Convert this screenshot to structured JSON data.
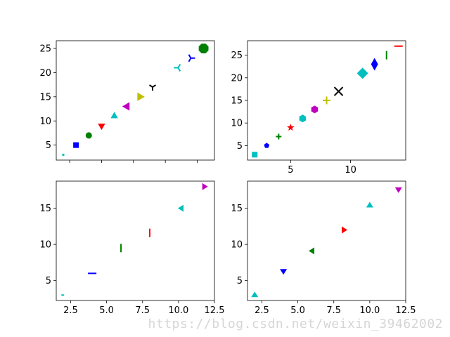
{
  "watermark": "https://blog.csdn.net/weixin_39462002",
  "chart_data": [
    {
      "type": "scatter",
      "xlim": [
        1.45,
        13.85
      ],
      "ylim": [
        1.9,
        26.6
      ],
      "xticks": [
        2.5,
        5.0,
        7.5,
        10.0,
        12.5
      ],
      "xticklabels": [
        "",
        "",
        "",
        "",
        ""
      ],
      "yticks": [
        5,
        10,
        15,
        20,
        25
      ],
      "yticklabels": [
        "5",
        "10",
        "15",
        "20",
        "25"
      ],
      "points": [
        {
          "x": 2,
          "y": 3,
          "marker": "point-small",
          "color": "#00BFBF"
        },
        {
          "x": 3,
          "y": 5,
          "marker": "square",
          "color": "#0000FF"
        },
        {
          "x": 4,
          "y": 7,
          "marker": "circle",
          "color": "#008000"
        },
        {
          "x": 5,
          "y": 9,
          "marker": "triangle-down",
          "color": "#FF0000"
        },
        {
          "x": 6,
          "y": 11,
          "marker": "triangle-up",
          "color": "#00BFBF"
        },
        {
          "x": 7,
          "y": 13,
          "marker": "triangle-left",
          "color": "#BF00BF"
        },
        {
          "x": 8,
          "y": 15,
          "marker": "triangle-right",
          "color": "#BFBF00"
        },
        {
          "x": 9,
          "y": 17,
          "marker": "tri-down",
          "color": "#000000"
        },
        {
          "x": 11,
          "y": 21,
          "marker": "tri-left",
          "color": "#00BFBF"
        },
        {
          "x": 12,
          "y": 23,
          "marker": "tri-right",
          "color": "#0000FF"
        },
        {
          "x": 13,
          "y": 25,
          "marker": "octagon",
          "color": "#008000"
        }
      ]
    },
    {
      "type": "scatter",
      "xlim": [
        1.4,
        14.6
      ],
      "ylim": [
        1.8,
        28.2
      ],
      "xticks": [
        5,
        10
      ],
      "xticklabels": [
        "5",
        "10"
      ],
      "yticks": [
        5,
        10,
        15,
        20,
        25
      ],
      "yticklabels": [
        "5",
        "10",
        "15",
        "20",
        "25"
      ],
      "points": [
        {
          "x": 2,
          "y": 3,
          "marker": "square",
          "color": "#00BFBF"
        },
        {
          "x": 3,
          "y": 5,
          "marker": "pentagon",
          "color": "#0000FF"
        },
        {
          "x": 4,
          "y": 7,
          "marker": "plus-filled",
          "color": "#008000"
        },
        {
          "x": 5,
          "y": 9,
          "marker": "star",
          "color": "#FF0000"
        },
        {
          "x": 6,
          "y": 11,
          "marker": "hexagon",
          "color": "#00BFBF"
        },
        {
          "x": 7,
          "y": 13,
          "marker": "hexagon",
          "color": "#BF00BF"
        },
        {
          "x": 8,
          "y": 15,
          "marker": "plus",
          "color": "#BFBF00"
        },
        {
          "x": 9,
          "y": 17,
          "marker": "x",
          "color": "#000000"
        },
        {
          "x": 11,
          "y": 21,
          "marker": "diamond",
          "color": "#00BFBF"
        },
        {
          "x": 12,
          "y": 23,
          "marker": "thin-diamond",
          "color": "#0000FF"
        },
        {
          "x": 13,
          "y": 25,
          "marker": "vline",
          "color": "#008000"
        },
        {
          "x": 14,
          "y": 27,
          "marker": "hline",
          "color": "#FF0000"
        }
      ]
    },
    {
      "type": "scatter",
      "xlim": [
        1.5,
        12.5
      ],
      "ylim": [
        2.25,
        18.75
      ],
      "xticks": [
        2.5,
        5.0,
        7.5,
        10.0,
        12.5
      ],
      "xticklabels": [
        "2.5",
        "5.0",
        "7.5",
        "10.0",
        "12.5"
      ],
      "yticks": [
        5,
        10,
        15
      ],
      "yticklabels": [
        "5",
        "10",
        "15"
      ],
      "points": [
        {
          "x": 2,
          "y": 3,
          "marker": "tickleft",
          "color": "#00BFBF"
        },
        {
          "x": 4,
          "y": 6,
          "marker": "hline",
          "color": "#0000FF"
        },
        {
          "x": 6,
          "y": 9.5,
          "marker": "vline",
          "color": "#008000"
        },
        {
          "x": 8,
          "y": 11.6,
          "marker": "vline",
          "color": "#FF0000"
        },
        {
          "x": 10.2,
          "y": 15,
          "marker": "caret-left",
          "color": "#00BFBF"
        },
        {
          "x": 11.8,
          "y": 18,
          "marker": "caret-right",
          "color": "#BF00BF"
        }
      ]
    },
    {
      "type": "scatter",
      "xlim": [
        1.5,
        12.5
      ],
      "ylim": [
        2.25,
        18.75
      ],
      "xticks": [
        2.5,
        5.0,
        7.5,
        10.0,
        12.5
      ],
      "xticklabels": [
        "2.5",
        "5.0",
        "7.5",
        "10.0",
        "12.5"
      ],
      "yticks": [
        5,
        10,
        15
      ],
      "yticklabels": [
        "5",
        "10",
        "15"
      ],
      "points": [
        {
          "x": 2,
          "y": 3,
          "marker": "caret-up",
          "color": "#00BFBF"
        },
        {
          "x": 4,
          "y": 6.3,
          "marker": "caret-down",
          "color": "#0000FF"
        },
        {
          "x": 6,
          "y": 9.1,
          "marker": "caret-left",
          "color": "#008000"
        },
        {
          "x": 8.2,
          "y": 12,
          "marker": "caret-right",
          "color": "#FF0000"
        },
        {
          "x": 10,
          "y": 15.4,
          "marker": "caret-up",
          "color": "#00BFBF"
        },
        {
          "x": 12,
          "y": 17.6,
          "marker": "caret-down",
          "color": "#BF00BF"
        }
      ]
    }
  ]
}
